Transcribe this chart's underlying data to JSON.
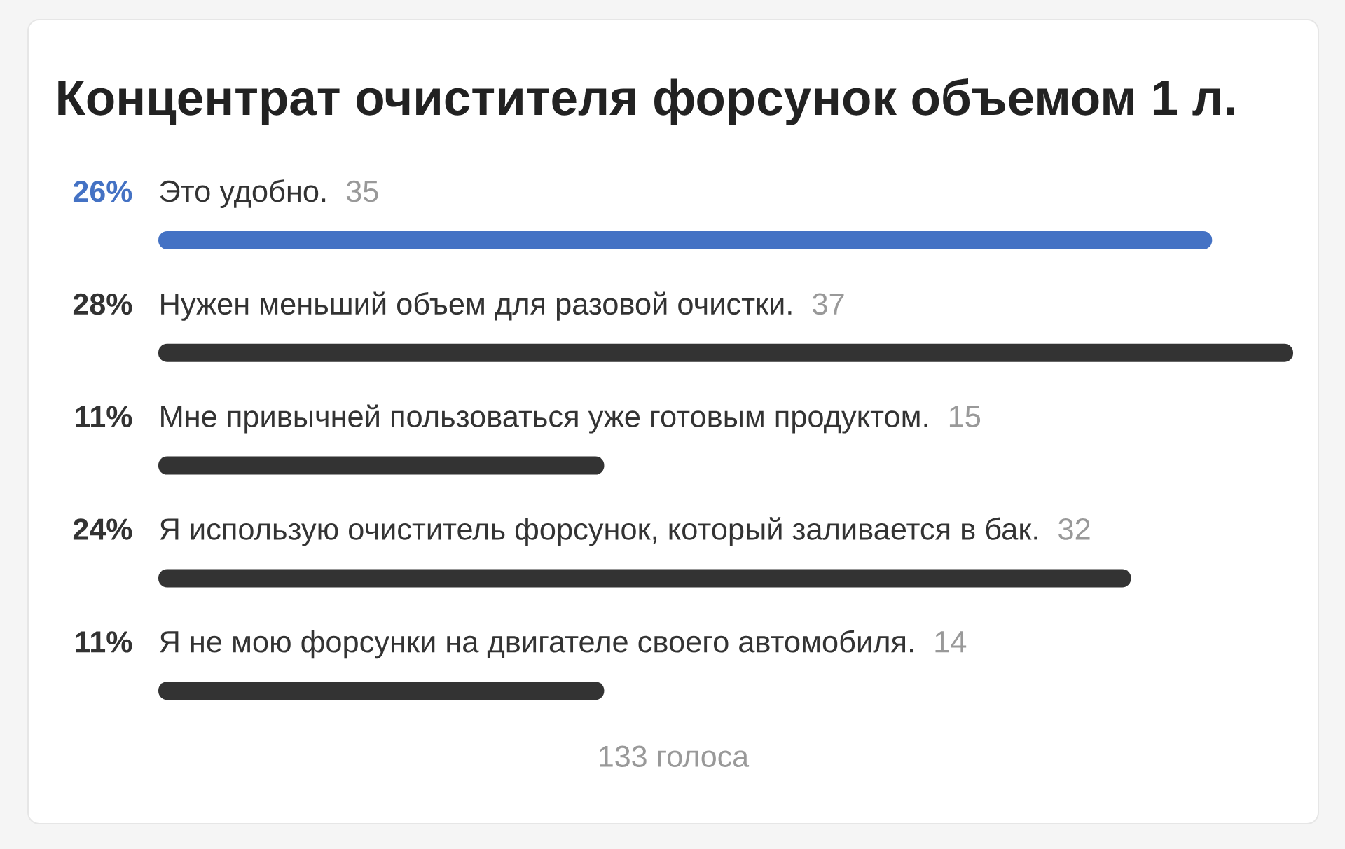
{
  "chart_data": {
    "type": "bar",
    "orientation": "horizontal",
    "title": "Концентрат очистителя форсунок объемом 1 л.",
    "categories": [
      "Это удобно.",
      "Нужен меньший объем для разовой очистки.",
      "Мне привычней пользоваться уже готовым продуктом.",
      "Я использую очиститель форсунок, который заливается в бак.",
      "Я не мою форсунки на двигателе своего автомобиля."
    ],
    "values": [
      26,
      28,
      11,
      24,
      11
    ],
    "colors": [
      "#4472c4",
      "#333333",
      "#333333",
      "#333333",
      "#333333"
    ],
    "value_labels": [
      "26%",
      "28%",
      "11%",
      "24%",
      "11%"
    ],
    "xlim": [
      0,
      28
    ],
    "tick_labels": "y",
    "annotations": [
      "35",
      "37",
      "15",
      "32",
      "14",
      "133 голоса"
    ]
  }
}
